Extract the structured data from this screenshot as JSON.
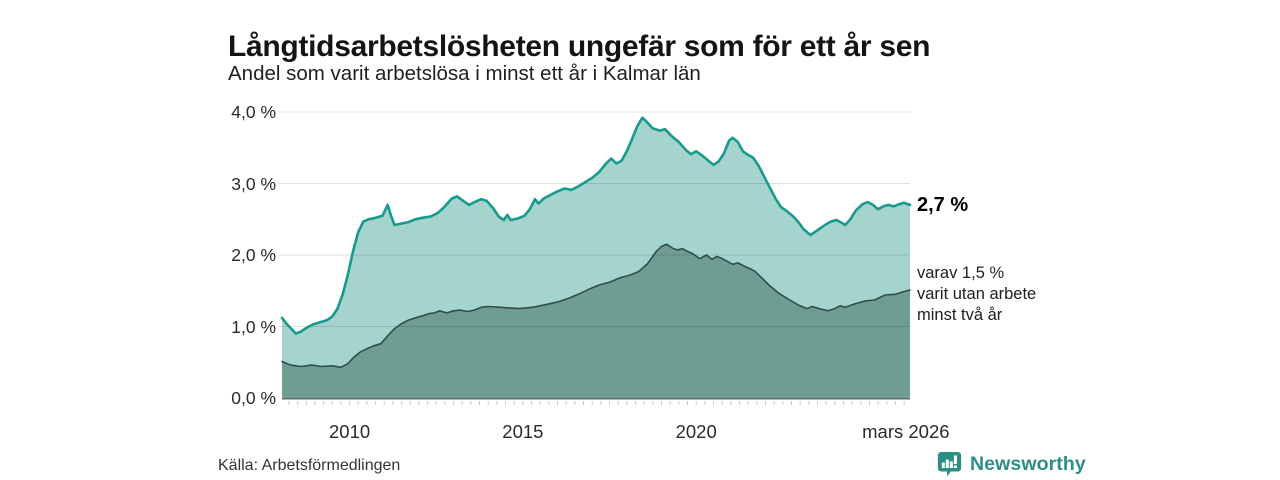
{
  "header": {
    "title": "Långtidsarbetslösheten ungefär som för ett år sen",
    "subtitle": "Andel som varit arbetslösa i minst ett år i Kalmar län"
  },
  "annotations": {
    "total": {
      "label": "2,7 %",
      "value": 2.7
    },
    "breakdown": {
      "lines": [
        "varav 1,5 %",
        "varit utan arbete",
        "minst två år"
      ],
      "value": 1.5
    }
  },
  "footer": {
    "source": "Källa: Arbetsförmedlingen",
    "brand": "Newsworthy",
    "brand_color": "#2e8e85"
  },
  "chart_data": {
    "type": "area",
    "title": "Långtidsarbetslösheten ungefär som för ett år sen",
    "subtitle": "Andel som varit arbetslösa i minst ett år i Kalmar län",
    "x_range": [
      2008.05,
      2026.17
    ],
    "y_range": [
      0,
      4
    ],
    "grid": true,
    "grid_color": "rgba(0,0,0,0.12)",
    "axis_color": "#5f6f6a",
    "tick_color": "#cccccc",
    "y_ticks": [
      {
        "value": 0,
        "label": "0,0 %"
      },
      {
        "value": 1,
        "label": "1,0 %"
      },
      {
        "value": 2,
        "label": "2,0 %"
      },
      {
        "value": 3,
        "label": "3,0 %"
      },
      {
        "value": 4,
        "label": "4,0 %"
      }
    ],
    "x_ticks": [
      {
        "value": 2010,
        "label": "2010"
      },
      {
        "value": 2015,
        "label": "2015"
      },
      {
        "value": 2020,
        "label": "2020"
      },
      {
        "value": 2026.05,
        "label": "mars 2026"
      }
    ],
    "series": [
      {
        "name": "Andel arbetslösa minst ett år",
        "color": "#189a8c",
        "fill": "#a5d3ce",
        "end_label": "2,7 %",
        "points": [
          [
            2008.05,
            1.12
          ],
          [
            2008.2,
            1.03
          ],
          [
            2008.45,
            0.9
          ],
          [
            2008.6,
            0.93
          ],
          [
            2008.75,
            0.98
          ],
          [
            2008.95,
            1.03
          ],
          [
            2009.15,
            1.06
          ],
          [
            2009.35,
            1.09
          ],
          [
            2009.5,
            1.14
          ],
          [
            2009.65,
            1.25
          ],
          [
            2009.8,
            1.45
          ],
          [
            2009.95,
            1.72
          ],
          [
            2010.1,
            2.05
          ],
          [
            2010.25,
            2.32
          ],
          [
            2010.4,
            2.47
          ],
          [
            2010.55,
            2.5
          ],
          [
            2010.75,
            2.52
          ],
          [
            2010.95,
            2.55
          ],
          [
            2011.05,
            2.65
          ],
          [
            2011.1,
            2.7
          ],
          [
            2011.2,
            2.54
          ],
          [
            2011.3,
            2.42
          ],
          [
            2011.5,
            2.44
          ],
          [
            2011.7,
            2.46
          ],
          [
            2011.9,
            2.5
          ],
          [
            2012.1,
            2.52
          ],
          [
            2012.35,
            2.54
          ],
          [
            2012.55,
            2.59
          ],
          [
            2012.75,
            2.68
          ],
          [
            2012.95,
            2.79
          ],
          [
            2013.1,
            2.82
          ],
          [
            2013.3,
            2.75
          ],
          [
            2013.45,
            2.7
          ],
          [
            2013.6,
            2.74
          ],
          [
            2013.8,
            2.78
          ],
          [
            2013.95,
            2.76
          ],
          [
            2014.15,
            2.65
          ],
          [
            2014.3,
            2.54
          ],
          [
            2014.45,
            2.49
          ],
          [
            2014.55,
            2.56
          ],
          [
            2014.65,
            2.49
          ],
          [
            2014.85,
            2.51
          ],
          [
            2015.05,
            2.55
          ],
          [
            2015.2,
            2.64
          ],
          [
            2015.35,
            2.78
          ],
          [
            2015.45,
            2.72
          ],
          [
            2015.6,
            2.79
          ],
          [
            2015.8,
            2.84
          ],
          [
            2016.0,
            2.89
          ],
          [
            2016.2,
            2.93
          ],
          [
            2016.4,
            2.91
          ],
          [
            2016.6,
            2.96
          ],
          [
            2016.8,
            3.02
          ],
          [
            2017.0,
            3.08
          ],
          [
            2017.2,
            3.16
          ],
          [
            2017.4,
            3.28
          ],
          [
            2017.55,
            3.35
          ],
          [
            2017.7,
            3.28
          ],
          [
            2017.85,
            3.32
          ],
          [
            2018.0,
            3.45
          ],
          [
            2018.15,
            3.62
          ],
          [
            2018.3,
            3.8
          ],
          [
            2018.45,
            3.92
          ],
          [
            2018.6,
            3.85
          ],
          [
            2018.75,
            3.77
          ],
          [
            2018.95,
            3.74
          ],
          [
            2019.1,
            3.76
          ],
          [
            2019.3,
            3.66
          ],
          [
            2019.5,
            3.58
          ],
          [
            2019.7,
            3.47
          ],
          [
            2019.85,
            3.41
          ],
          [
            2020.0,
            3.45
          ],
          [
            2020.15,
            3.4
          ],
          [
            2020.35,
            3.32
          ],
          [
            2020.5,
            3.26
          ],
          [
            2020.65,
            3.31
          ],
          [
            2020.8,
            3.42
          ],
          [
            2020.95,
            3.6
          ],
          [
            2021.05,
            3.64
          ],
          [
            2021.2,
            3.58
          ],
          [
            2021.35,
            3.45
          ],
          [
            2021.5,
            3.4
          ],
          [
            2021.65,
            3.36
          ],
          [
            2021.8,
            3.25
          ],
          [
            2022.0,
            3.06
          ],
          [
            2022.15,
            2.92
          ],
          [
            2022.3,
            2.78
          ],
          [
            2022.45,
            2.67
          ],
          [
            2022.6,
            2.62
          ],
          [
            2022.8,
            2.54
          ],
          [
            2022.95,
            2.46
          ],
          [
            2023.1,
            2.36
          ],
          [
            2023.3,
            2.28
          ],
          [
            2023.45,
            2.33
          ],
          [
            2023.6,
            2.38
          ],
          [
            2023.75,
            2.43
          ],
          [
            2023.9,
            2.47
          ],
          [
            2024.05,
            2.49
          ],
          [
            2024.2,
            2.45
          ],
          [
            2024.3,
            2.42
          ],
          [
            2024.45,
            2.5
          ],
          [
            2024.6,
            2.62
          ],
          [
            2024.8,
            2.71
          ],
          [
            2024.95,
            2.74
          ],
          [
            2025.1,
            2.7
          ],
          [
            2025.25,
            2.64
          ],
          [
            2025.4,
            2.68
          ],
          [
            2025.55,
            2.7
          ],
          [
            2025.7,
            2.68
          ],
          [
            2025.85,
            2.71
          ],
          [
            2026.0,
            2.73
          ],
          [
            2026.17,
            2.7
          ]
        ]
      },
      {
        "name": "varav utan arbete minst två år",
        "color": "#2f4f48",
        "fill": "#6f9c93",
        "end_label": "varav 1,5 %",
        "points": [
          [
            2008.05,
            0.51
          ],
          [
            2008.3,
            0.46
          ],
          [
            2008.6,
            0.44
          ],
          [
            2008.9,
            0.46
          ],
          [
            2009.2,
            0.44
          ],
          [
            2009.5,
            0.45
          ],
          [
            2009.75,
            0.43
          ],
          [
            2009.95,
            0.48
          ],
          [
            2010.1,
            0.56
          ],
          [
            2010.3,
            0.64
          ],
          [
            2010.5,
            0.69
          ],
          [
            2010.7,
            0.73
          ],
          [
            2010.9,
            0.76
          ],
          [
            2011.1,
            0.87
          ],
          [
            2011.3,
            0.97
          ],
          [
            2011.5,
            1.04
          ],
          [
            2011.7,
            1.09
          ],
          [
            2011.9,
            1.12
          ],
          [
            2012.1,
            1.15
          ],
          [
            2012.3,
            1.18
          ],
          [
            2012.45,
            1.19
          ],
          [
            2012.6,
            1.22
          ],
          [
            2012.8,
            1.19
          ],
          [
            2013.0,
            1.22
          ],
          [
            2013.2,
            1.23
          ],
          [
            2013.4,
            1.21
          ],
          [
            2013.6,
            1.23
          ],
          [
            2013.8,
            1.27
          ],
          [
            2014.0,
            1.28
          ],
          [
            2014.3,
            1.27
          ],
          [
            2014.6,
            1.26
          ],
          [
            2014.9,
            1.25
          ],
          [
            2015.3,
            1.27
          ],
          [
            2015.7,
            1.31
          ],
          [
            2016.05,
            1.35
          ],
          [
            2016.35,
            1.4
          ],
          [
            2016.6,
            1.45
          ],
          [
            2016.9,
            1.52
          ],
          [
            2017.2,
            1.58
          ],
          [
            2017.5,
            1.62
          ],
          [
            2017.8,
            1.68
          ],
          [
            2018.1,
            1.72
          ],
          [
            2018.35,
            1.77
          ],
          [
            2018.6,
            1.88
          ],
          [
            2018.85,
            2.05
          ],
          [
            2019.0,
            2.12
          ],
          [
            2019.15,
            2.15
          ],
          [
            2019.3,
            2.1
          ],
          [
            2019.45,
            2.07
          ],
          [
            2019.6,
            2.09
          ],
          [
            2019.75,
            2.05
          ],
          [
            2019.9,
            2.02
          ],
          [
            2020.1,
            1.95
          ],
          [
            2020.3,
            2.0
          ],
          [
            2020.45,
            1.94
          ],
          [
            2020.6,
            1.98
          ],
          [
            2020.75,
            1.95
          ],
          [
            2020.9,
            1.91
          ],
          [
            2021.05,
            1.87
          ],
          [
            2021.2,
            1.89
          ],
          [
            2021.4,
            1.84
          ],
          [
            2021.55,
            1.81
          ],
          [
            2021.7,
            1.77
          ],
          [
            2021.85,
            1.7
          ],
          [
            2022.1,
            1.58
          ],
          [
            2022.4,
            1.46
          ],
          [
            2022.7,
            1.37
          ],
          [
            2022.95,
            1.3
          ],
          [
            2023.2,
            1.25
          ],
          [
            2023.35,
            1.28
          ],
          [
            2023.55,
            1.25
          ],
          [
            2023.8,
            1.22
          ],
          [
            2024.0,
            1.25
          ],
          [
            2024.15,
            1.29
          ],
          [
            2024.3,
            1.27
          ],
          [
            2024.6,
            1.32
          ],
          [
            2024.9,
            1.36
          ],
          [
            2025.15,
            1.37
          ],
          [
            2025.45,
            1.44
          ],
          [
            2025.75,
            1.45
          ],
          [
            2026.0,
            1.49
          ],
          [
            2026.17,
            1.51
          ]
        ]
      }
    ]
  }
}
